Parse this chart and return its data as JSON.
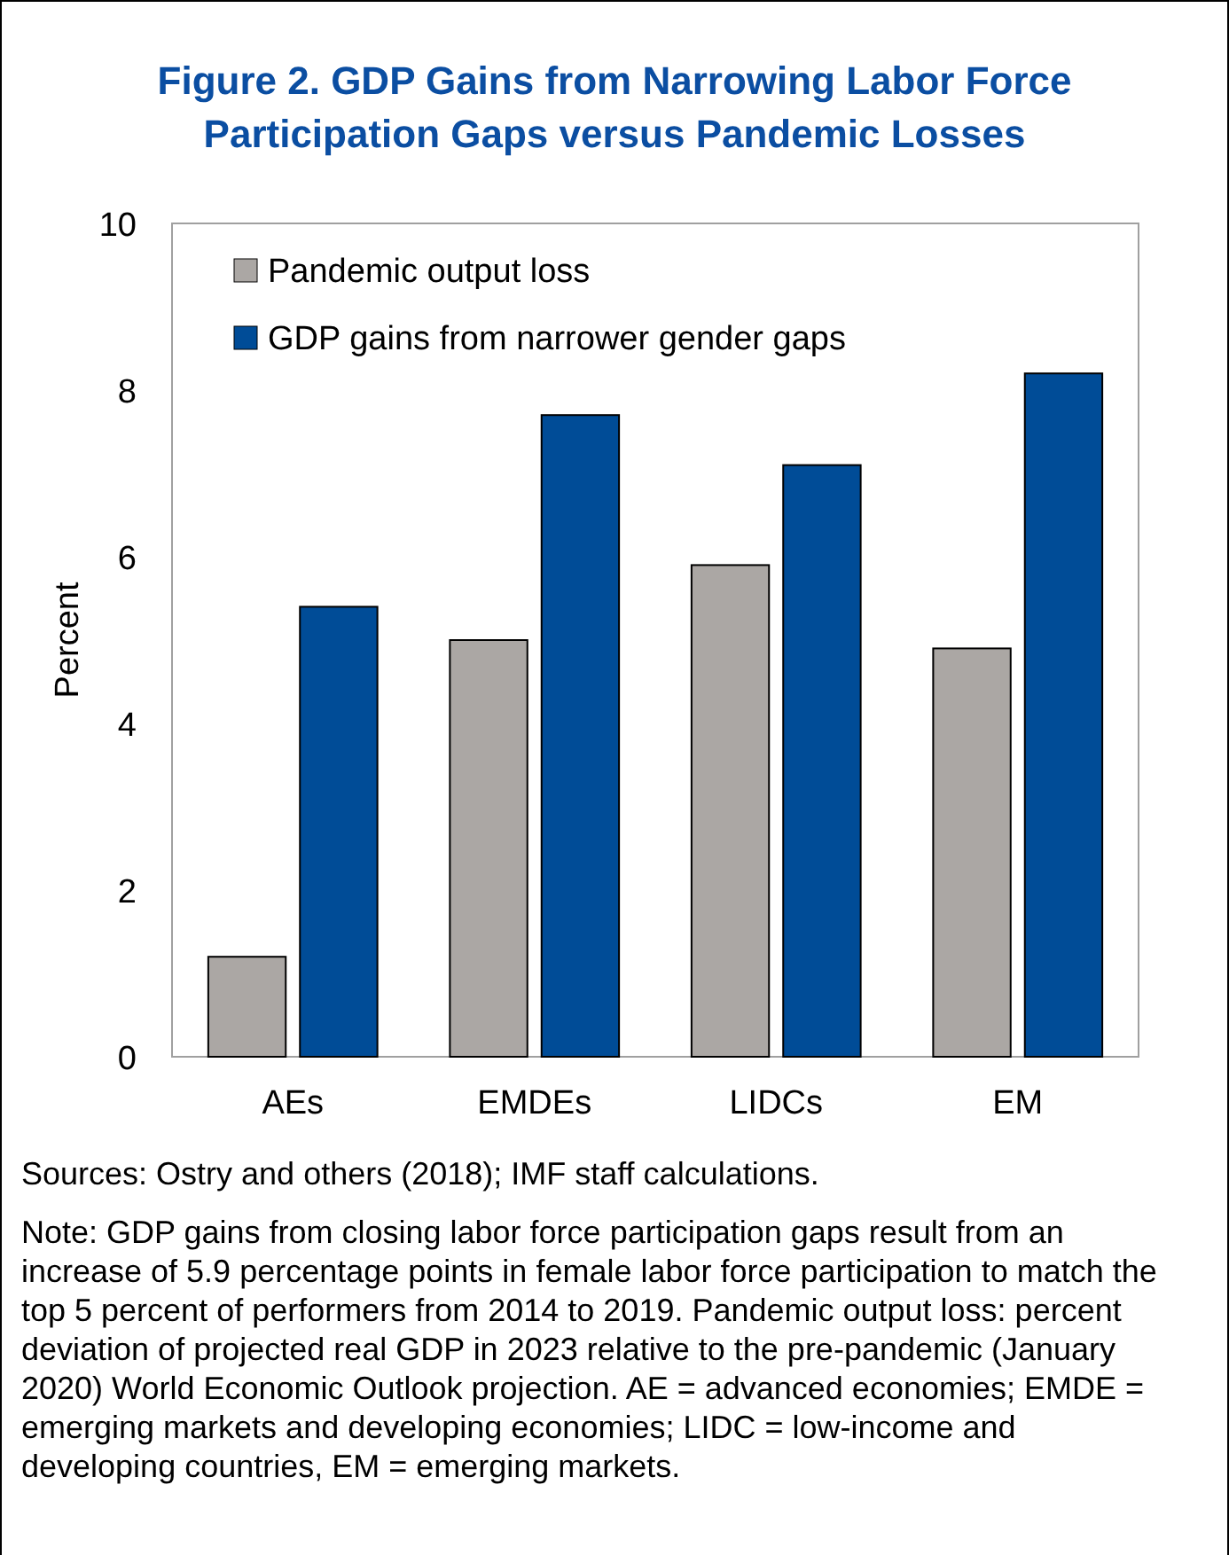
{
  "chart_data": {
    "type": "bar",
    "title": "Figure 2. GDP Gains from Narrowing Labor Force Participation Gaps versus Pandemic Losses",
    "ylabel": "Percent",
    "categories": [
      "AEs",
      "EMDEs",
      "LIDCs",
      "EM"
    ],
    "series": [
      {
        "name": "Pandemic output loss",
        "color": "#aba7a4",
        "values": [
          1.2,
          5.0,
          5.9,
          4.9
        ]
      },
      {
        "name": "GDP gains from narrower gender gaps",
        "color": "#004c97",
        "values": [
          5.4,
          7.7,
          7.1,
          8.2
        ]
      }
    ],
    "ylim": [
      0,
      10
    ],
    "yticks": [
      0,
      2,
      4,
      6,
      8,
      10
    ],
    "legend": "top left",
    "annotations": [
      "Sources: Ostry and others (2018); IMF staff calculations.",
      "Note: GDP gains from closing labor force participation gaps result from an increase of 5.9 percentage points in female labor force participation to match the top 5 percent of performers from 2014 to 2019. Pandemic output loss: percent deviation of projected real GDP in 2023 relative to the pre-pandemic (January 2020) World Economic Outlook projection. AE = advanced economies; EMDE = emerging markets and developing economies; LIDC = low-income and developing countries, EM = emerging markets."
    ]
  }
}
